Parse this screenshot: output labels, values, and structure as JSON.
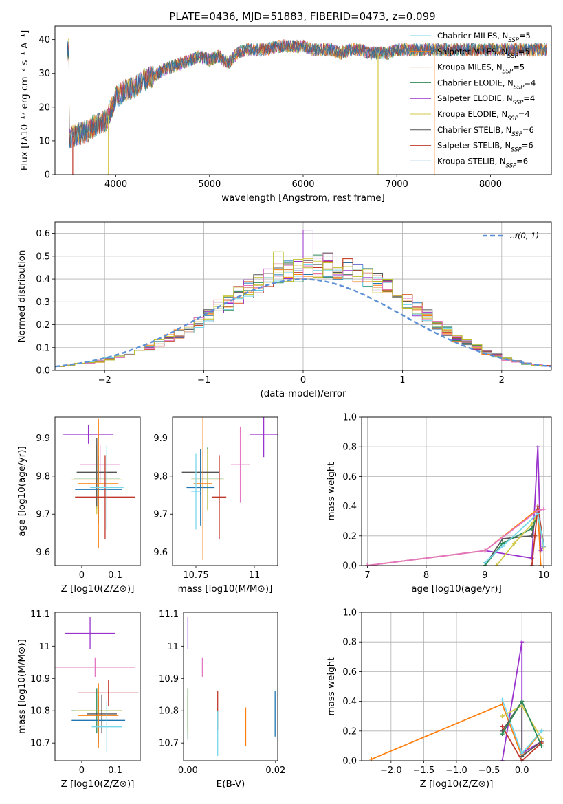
{
  "title": "PLATE=0436, MJD=51883, FIBERID=0473, z=0.099",
  "colors": [
    "#1f77b4",
    "#ff7f0e",
    "#e07b39",
    "#2e8b57",
    "#9932cc",
    "#d4c84a",
    "#555555",
    "#c0392b",
    "#76d7ea",
    "#e377c2",
    "#bcbd22",
    "#17becf"
  ],
  "chart_data": [
    {
      "id": "spectrum",
      "type": "line",
      "xlabel": "wavelength [Angstrom, rest frame]",
      "ylabel": "Flux [fλ10⁻¹⁷ erg cm⁻² s⁻¹ A⁻¹]",
      "xlim": [
        3350,
        8650
      ],
      "ylim": [
        0,
        44
      ],
      "xticks": [
        "4000",
        "5000",
        "6000",
        "7000",
        "8000"
      ],
      "yticks": [
        "0",
        "10",
        "20",
        "30",
        "40"
      ],
      "legend_position": "top-right",
      "series": [
        {
          "name": "Chabrier MILES, N_SSP=5"
        },
        {
          "name": "Salpeter MILES, N_SSP=5"
        },
        {
          "name": "Kroupa MILES, N_SSP=5"
        },
        {
          "name": "Chabrier ELODIE, N_SSP=4"
        },
        {
          "name": "Salpeter ELODIE, N_SSP=4"
        },
        {
          "name": "Kroupa ELODIE, N_SSP=4"
        },
        {
          "name": "Chabrier STELIB, N_SSP=6"
        },
        {
          "name": "Salpeter STELIB, N_SSP=6"
        },
        {
          "name": "Kroupa STELIB, N_SSP=6"
        }
      ],
      "continuum": [
        [
          3500,
          11
        ],
        [
          3600,
          12
        ],
        [
          3700,
          13
        ],
        [
          3800,
          15
        ],
        [
          3900,
          16
        ],
        [
          4000,
          23
        ],
        [
          4100,
          25
        ],
        [
          4200,
          26
        ],
        [
          4300,
          28
        ],
        [
          4400,
          29
        ],
        [
          4500,
          31
        ],
        [
          4600,
          32
        ],
        [
          4700,
          33
        ],
        [
          4800,
          34
        ],
        [
          4900,
          35
        ],
        [
          5000,
          34
        ],
        [
          5100,
          35
        ],
        [
          5200,
          33
        ],
        [
          5300,
          36
        ],
        [
          5400,
          37
        ],
        [
          5500,
          37
        ],
        [
          5600,
          37
        ],
        [
          5700,
          38
        ],
        [
          5800,
          38
        ],
        [
          5900,
          38
        ],
        [
          6000,
          38
        ],
        [
          6100,
          37
        ],
        [
          6200,
          37
        ],
        [
          6300,
          37
        ],
        [
          6400,
          36
        ],
        [
          6500,
          37
        ],
        [
          6600,
          37
        ],
        [
          6700,
          36
        ],
        [
          6800,
          36
        ],
        [
          6900,
          36
        ],
        [
          7000,
          37
        ],
        [
          7100,
          37
        ],
        [
          7200,
          37
        ],
        [
          7300,
          37
        ],
        [
          7400,
          37
        ],
        [
          7500,
          37
        ],
        [
          7600,
          37
        ],
        [
          7700,
          37
        ],
        [
          7800,
          37
        ],
        [
          7900,
          37
        ],
        [
          8000,
          37
        ],
        [
          8100,
          37
        ],
        [
          8200,
          37
        ],
        [
          8300,
          37
        ],
        [
          8400,
          37
        ],
        [
          8500,
          37
        ],
        [
          8600,
          37
        ]
      ]
    },
    {
      "id": "residuals",
      "type": "histogram",
      "xlabel": "(data-model)/error",
      "ylabel": "Normed distribution",
      "xlim": [
        -2.5,
        2.5
      ],
      "ylim": [
        0,
        0.65
      ],
      "xticks": [
        -2,
        -1,
        0,
        1,
        2
      ],
      "xticklabels": [
        "−2",
        "−1",
        "0",
        "1",
        "2"
      ],
      "yticks": [
        "0.0",
        "0.1",
        "0.2",
        "0.3",
        "0.4",
        "0.5",
        "0.6"
      ],
      "grid": true,
      "legend": "𝒩(0, 1)",
      "legend_position": "top-right",
      "bin_width": 0.1,
      "bin_start": -2.5,
      "hist_base": [
        0.02,
        0.025,
        0.03,
        0.035,
        0.04,
        0.05,
        0.06,
        0.07,
        0.085,
        0.1,
        0.12,
        0.14,
        0.16,
        0.18,
        0.21,
        0.24,
        0.28,
        0.3,
        0.33,
        0.36,
        0.38,
        0.4,
        0.42,
        0.43,
        0.44,
        0.45,
        0.46,
        0.46,
        0.45,
        0.44,
        0.42,
        0.4,
        0.38,
        0.36,
        0.33,
        0.3,
        0.27,
        0.24,
        0.2,
        0.17,
        0.14,
        0.12,
        0.1,
        0.08,
        0.065,
        0.05,
        0.04,
        0.03,
        0.025,
        0.02
      ]
    },
    {
      "id": "age_vs_Z",
      "type": "errorbar",
      "xlabel": "Z [log10(Z/Z⊙)]",
      "ylabel": "age [log10(age/yr)]",
      "xlim": [
        -0.08,
        0.175
      ],
      "ylim": [
        9.565,
        9.955
      ],
      "xticks": [
        0.0,
        0.1
      ],
      "yticks": [
        9.6,
        9.7,
        9.8,
        9.9
      ],
      "points": [
        {
          "x": 0.02,
          "y": 9.91,
          "xerr": 0.075,
          "yerr": 0.025,
          "c": 4
        },
        {
          "x": 0.055,
          "y": 9.83,
          "xerr": 0.06,
          "yerr": 0.05,
          "c": 9
        },
        {
          "x": 0.045,
          "y": 9.795,
          "xerr": 0.07,
          "yerr": 0.08,
          "c": 3
        },
        {
          "x": 0.045,
          "y": 9.79,
          "xerr": 0.075,
          "yerr": 0.09,
          "c": 5
        },
        {
          "x": 0.045,
          "y": 9.81,
          "xerr": 0.06,
          "yerr": 0.09,
          "c": 6
        },
        {
          "x": 0.05,
          "y": 9.765,
          "xerr": 0.07,
          "yerr": 0.09,
          "c": 0
        },
        {
          "x": 0.05,
          "y": 9.78,
          "xerr": 0.06,
          "yerr": 0.17,
          "c": 1
        },
        {
          "x": 0.07,
          "y": 9.745,
          "xerr": 0.09,
          "yerr": 0.11,
          "c": 7
        },
        {
          "x": 0.075,
          "y": 9.77,
          "xerr": 0.05,
          "yerr": 0.11,
          "c": 8
        }
      ]
    },
    {
      "id": "age_vs_mass",
      "type": "errorbar",
      "xlabel": "mass [log10(M/M⊙)]",
      "ylabel": "",
      "xlim": [
        10.65,
        11.1
      ],
      "ylim": [
        9.565,
        9.955
      ],
      "xticks": [
        10.75,
        11.0
      ],
      "yticks": [
        9.6,
        9.7,
        9.8,
        9.9
      ],
      "points": [
        {
          "x": 11.04,
          "y": 9.91,
          "xerr": 0.06,
          "yerr": 0.06,
          "c": 4
        },
        {
          "x": 10.94,
          "y": 9.83,
          "xerr": 0.04,
          "yerr": 0.1,
          "c": 9
        },
        {
          "x": 10.8,
          "y": 9.795,
          "xerr": 0.07,
          "yerr": 0.08,
          "c": 3
        },
        {
          "x": 10.8,
          "y": 9.79,
          "xerr": 0.07,
          "yerr": 0.08,
          "c": 5
        },
        {
          "x": 10.77,
          "y": 9.81,
          "xerr": 0.08,
          "yerr": 0.06,
          "c": 6
        },
        {
          "x": 10.77,
          "y": 9.77,
          "xerr": 0.06,
          "yerr": 0.1,
          "c": 0
        },
        {
          "x": 10.78,
          "y": 9.78,
          "xerr": 0.04,
          "yerr": 0.2,
          "c": 1
        },
        {
          "x": 10.85,
          "y": 9.745,
          "xerr": 0.03,
          "yerr": 0.11,
          "c": 7
        },
        {
          "x": 10.75,
          "y": 9.76,
          "xerr": 0.02,
          "yerr": 0.1,
          "c": 8
        }
      ]
    },
    {
      "id": "weight_vs_age",
      "type": "line",
      "xlabel": "age [log10(age/yr)]",
      "ylabel": "mass weight",
      "xlim": [
        6.9,
        10.13
      ],
      "ylim": [
        0,
        1
      ],
      "xticks": [
        7,
        8,
        9,
        10
      ],
      "yticks": [
        "0.0",
        "0.2",
        "0.4",
        "0.6",
        "0.8",
        "1.0"
      ],
      "grid": true,
      "series": [
        {
          "c": 4,
          "pts": [
            [
              7.0,
              0.0
            ],
            [
              9.0,
              0.1
            ],
            [
              9.8,
              0.05
            ],
            [
              9.9,
              0.8
            ],
            [
              9.95,
              0.1
            ],
            [
              10.0,
              0.13
            ]
          ]
        },
        {
          "c": 1,
          "pts": [
            [
              7.0,
              0.0
            ],
            [
              9.0,
              0.1
            ],
            [
              9.9,
              0.38
            ],
            [
              9.95,
              0.0
            ]
          ]
        },
        {
          "c": 6,
          "pts": [
            [
              9.0,
              0.0
            ],
            [
              9.3,
              0.18
            ],
            [
              9.8,
              0.2
            ],
            [
              9.9,
              0.4
            ],
            [
              10.0,
              0.13
            ]
          ]
        },
        {
          "c": 3,
          "pts": [
            [
              9.0,
              0.0
            ],
            [
              9.3,
              0.15
            ],
            [
              9.8,
              0.25
            ],
            [
              9.9,
              0.35
            ],
            [
              10.0,
              0.13
            ]
          ]
        },
        {
          "c": 5,
          "pts": [
            [
              9.2,
              0.0
            ],
            [
              9.5,
              0.15
            ],
            [
              9.8,
              0.28
            ],
            [
              9.9,
              0.35
            ],
            [
              10.0,
              0.12
            ]
          ]
        },
        {
          "c": 7,
          "pts": [
            [
              9.8,
              0.0
            ],
            [
              9.85,
              0.2
            ],
            [
              9.9,
              0.4
            ],
            [
              10.0,
              0.13
            ]
          ]
        },
        {
          "c": 9,
          "pts": [
            [
              7.0,
              0.0
            ],
            [
              9.0,
              0.1
            ],
            [
              9.9,
              0.37
            ],
            [
              10.0,
              0.38
            ]
          ]
        },
        {
          "c": 8,
          "pts": [
            [
              9.0,
              0.02
            ],
            [
              9.3,
              0.13
            ],
            [
              9.9,
              0.35
            ],
            [
              10.0,
              0.13
            ]
          ]
        }
      ]
    },
    {
      "id": "mass_vs_Z",
      "type": "errorbar",
      "xlabel": "Z [log10(Z/Z⊙)]",
      "ylabel": "mass [log10(M/M⊙)]",
      "xlim": [
        -0.08,
        0.175
      ],
      "ylim": [
        10.645,
        11.105
      ],
      "xticks": [
        0.0,
        0.1
      ],
      "yticks": [
        10.7,
        10.8,
        10.9,
        11.0,
        11.1
      ],
      "points": [
        {
          "x": 0.025,
          "y": 11.04,
          "xerr": 0.075,
          "yerr": 0.05,
          "c": 4
        },
        {
          "x": 0.04,
          "y": 10.935,
          "xerr": 0.12,
          "yerr": 0.03,
          "c": 9
        },
        {
          "x": 0.045,
          "y": 10.8,
          "xerr": 0.075,
          "yerr": 0.07,
          "c": 3
        },
        {
          "x": 0.05,
          "y": 10.8,
          "xerr": 0.07,
          "yerr": 0.05,
          "c": 5
        },
        {
          "x": 0.06,
          "y": 10.79,
          "xerr": 0.045,
          "yerr": 0.06,
          "c": 6
        },
        {
          "x": 0.05,
          "y": 10.77,
          "xerr": 0.08,
          "yerr": 0.07,
          "c": 0
        },
        {
          "x": 0.05,
          "y": 10.785,
          "xerr": 0.06,
          "yerr": 0.1,
          "c": 1
        },
        {
          "x": 0.08,
          "y": 10.855,
          "xerr": 0.09,
          "yerr": 0.04,
          "c": 7
        },
        {
          "x": 0.075,
          "y": 10.75,
          "xerr": 0.045,
          "yerr": 0.08,
          "c": 8
        }
      ]
    },
    {
      "id": "mass_vs_ebv",
      "type": "errorbar",
      "xlabel": "E(B-V)",
      "ylabel": "",
      "xlim": [
        -0.001,
        0.0205
      ],
      "ylim": [
        10.645,
        11.105
      ],
      "xticks": [
        0.0,
        0.02
      ],
      "xticklabels": [
        "0.00",
        "0.02"
      ],
      "yticks": [
        10.7,
        10.8,
        10.9,
        11.0,
        11.1
      ],
      "points": [
        {
          "x": 0.0,
          "y": 11.04,
          "yerr": 0.05,
          "c": 4
        },
        {
          "x": 0.0,
          "y": 10.8,
          "yerr": 0.07,
          "c": 5
        },
        {
          "x": 0.0,
          "y": 10.79,
          "yerr": 0.08,
          "c": 3
        },
        {
          "x": 0.0033,
          "y": 10.935,
          "yerr": 0.03,
          "c": 9
        },
        {
          "x": 0.0068,
          "y": 10.8,
          "yerr": 0.06,
          "c": 7
        },
        {
          "x": 0.0068,
          "y": 10.73,
          "yerr": 0.07,
          "c": 8
        },
        {
          "x": 0.0132,
          "y": 10.75,
          "yerr": 0.06,
          "c": 1
        },
        {
          "x": 0.0199,
          "y": 10.79,
          "yerr": 0.07,
          "c": 0
        }
      ]
    },
    {
      "id": "weight_vs_Z",
      "type": "line",
      "xlabel": "Z [log10(Z/Z⊙)]",
      "ylabel": "mass weight",
      "xlim": [
        -2.45,
        0.45
      ],
      "ylim": [
        0,
        1
      ],
      "xticks": [
        -2.0,
        -1.5,
        -1.0,
        -0.5,
        0.0
      ],
      "xticklabels": [
        "−2.0",
        "−1.5",
        "−1.0",
        "−0.5",
        "0.0"
      ],
      "yticks": [
        "0.0",
        "0.2",
        "0.4",
        "0.6",
        "0.8",
        "1.0"
      ],
      "grid": true,
      "series": [
        {
          "c": 1,
          "pts": [
            [
              -2.3,
              0.01
            ],
            [
              -0.3,
              0.38
            ],
            [
              0.0,
              0.03
            ],
            [
              0.3,
              0.2
            ]
          ]
        },
        {
          "c": 4,
          "pts": [
            [
              -0.3,
              0.0
            ],
            [
              0.0,
              0.8
            ],
            [
              0.0,
              0.05
            ],
            [
              0.3,
              0.13
            ]
          ]
        },
        {
          "c": 6,
          "pts": [
            [
              -0.3,
              0.2
            ],
            [
              0.0,
              0.4
            ],
            [
              0.0,
              0.03
            ],
            [
              0.3,
              0.13
            ]
          ]
        },
        {
          "c": 5,
          "pts": [
            [
              -0.3,
              0.3
            ],
            [
              0.0,
              0.37
            ],
            [
              0.3,
              0.15
            ]
          ]
        },
        {
          "c": 7,
          "pts": [
            [
              -0.3,
              0.23
            ],
            [
              0.0,
              0.0
            ],
            [
              0.3,
              0.12
            ]
          ]
        },
        {
          "c": 8,
          "pts": [
            [
              -0.3,
              0.41
            ],
            [
              0.0,
              0.05
            ],
            [
              0.3,
              0.2
            ]
          ]
        },
        {
          "c": 3,
          "pts": [
            [
              -0.3,
              0.18
            ],
            [
              0.0,
              0.4
            ],
            [
              0.3,
              0.1
            ]
          ]
        }
      ]
    }
  ]
}
